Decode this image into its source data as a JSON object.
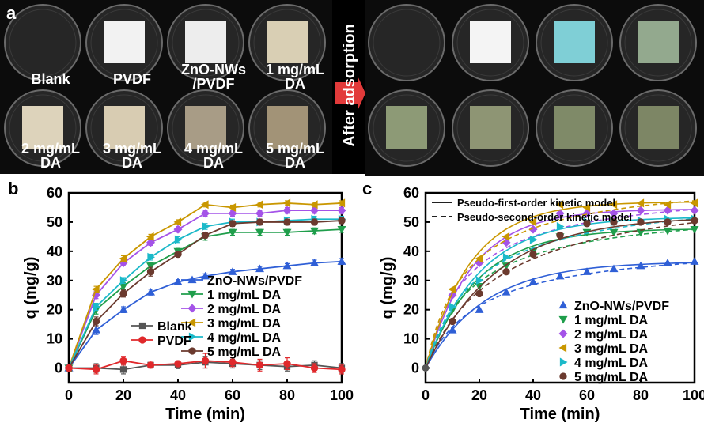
{
  "panel_a": {
    "letter": "a",
    "arrow_label": "After adsorption",
    "samples": [
      {
        "label": "Blank",
        "before": "#111111",
        "after": "#111111"
      },
      {
        "label": "PVDF",
        "before": "#f2f2f2",
        "after": "#f4f4f4"
      },
      {
        "label": "ZnO-NWs /PVDF",
        "before": "#ededed",
        "after": "#7fcfd6"
      },
      {
        "label": "1 mg/mL DA",
        "before": "#d9cfb4",
        "after": "#93a98e"
      },
      {
        "label": "2 mg/mL DA",
        "before": "#ddd3bb",
        "after": "#8d9a76"
      },
      {
        "label": "3 mg/mL DA",
        "before": "#d8ccb2",
        "after": "#8e9574"
      },
      {
        "label": "4 mg/mL DA",
        "before": "#a89c86",
        "after": "#7f8a68"
      },
      {
        "label": "5 mg/mL DA",
        "before": "#a29377",
        "after": "#7d8665"
      }
    ]
  },
  "chart_data": [
    {
      "panel": "b",
      "type": "line",
      "xlabel": "Time (min)",
      "ylabel": "q (mg/g)",
      "xlim": [
        0,
        100
      ],
      "ylim": [
        -5,
        60
      ],
      "xticks": [
        0,
        20,
        40,
        60,
        80,
        100
      ],
      "yticks": [
        0,
        10,
        20,
        30,
        40,
        50,
        60
      ],
      "x": [
        0,
        10,
        20,
        30,
        40,
        50,
        60,
        70,
        80,
        90,
        100
      ],
      "series": [
        {
          "name": "ZnO-NWs/PVDF",
          "color": "#2f5fd6",
          "marker": "triangle-up",
          "values": [
            0,
            13,
            20,
            26,
            29.5,
            31.5,
            33,
            34,
            35,
            36,
            36.5
          ],
          "err": [
            0,
            1.5,
            1,
            1,
            0.8,
            0.8,
            0.8,
            0.8,
            0.8,
            1,
            1
          ]
        },
        {
          "name": "1 mg/mL DA",
          "color": "#1f9e4b",
          "marker": "triangle-down",
          "values": [
            0,
            20,
            28,
            35,
            40,
            45,
            46.5,
            46.5,
            46.5,
            47,
            47.5
          ],
          "err": [
            0,
            1.5,
            1.2,
            1,
            1,
            1.2,
            1,
            1,
            1,
            1,
            1
          ]
        },
        {
          "name": "2 mg/mL DA",
          "color": "#a453e8",
          "marker": "diamond",
          "values": [
            0,
            25,
            36,
            43,
            47.5,
            53,
            53,
            53,
            54,
            54,
            54
          ],
          "err": [
            0,
            1.2,
            1,
            1,
            1,
            1,
            1,
            1,
            1,
            1,
            1
          ]
        },
        {
          "name": "3 mg/mL DA",
          "color": "#c99700",
          "marker": "triangle-left",
          "values": [
            0,
            27,
            37.5,
            45,
            50,
            56,
            55,
            56,
            56.5,
            56,
            56.5
          ],
          "err": [
            0,
            1,
            1,
            0.8,
            0.8,
            0.8,
            0.8,
            0.8,
            0.8,
            0.8,
            0.8
          ]
        },
        {
          "name": "4 mg/mL DA",
          "color": "#1bb9c9",
          "marker": "triangle-right",
          "values": [
            0,
            21,
            30,
            38,
            44,
            48.5,
            50,
            50,
            50.5,
            51,
            51
          ],
          "err": [
            0,
            1.2,
            1,
            1,
            1,
            1,
            1,
            1,
            1,
            1,
            1
          ]
        },
        {
          "name": "5 mg/mL DA",
          "color": "#6b3a2e",
          "marker": "circle",
          "values": [
            0,
            16,
            25.5,
            33,
            39,
            45.5,
            49.5,
            50,
            50,
            50,
            50.5
          ],
          "err": [
            0,
            1.5,
            1.2,
            1.5,
            1,
            1,
            1,
            1,
            1,
            1,
            1
          ]
        },
        {
          "name": "Blank",
          "color": "#555555",
          "marker": "square",
          "values": [
            0,
            0,
            -0.5,
            1,
            1,
            2,
            1.5,
            1,
            0.5,
            1,
            0
          ],
          "err": [
            0,
            1.5,
            1.5,
            1,
            1.2,
            2,
            1.5,
            1.5,
            1.5,
            1.5,
            1.5
          ]
        },
        {
          "name": "PVDF",
          "color": "#e0282b",
          "marker": "circle",
          "values": [
            0,
            -0.5,
            2.5,
            1,
            1.5,
            2.5,
            2,
            1,
            1.5,
            0,
            -0.5
          ],
          "err": [
            0,
            1.5,
            1.5,
            1,
            1,
            2.5,
            1.5,
            2,
            2,
            1.5,
            1.5
          ]
        }
      ],
      "legend_groups": [
        {
          "position": "right-middle",
          "items": [
            "ZnO-NWs/PVDF",
            "1 mg/mL DA",
            "2 mg/mL DA",
            "3 mg/mL DA",
            "4 mg/mL DA",
            "5 mg/mL DA"
          ]
        },
        {
          "position": "lower-center",
          "items": [
            "Blank",
            "PVDF"
          ]
        }
      ]
    },
    {
      "panel": "c",
      "type": "scatter",
      "xlabel": "Time (min)",
      "ylabel": "q (mg/g)",
      "xlim": [
        0,
        100
      ],
      "ylim": [
        -5,
        60
      ],
      "xticks": [
        0,
        20,
        40,
        60,
        80,
        100
      ],
      "yticks": [
        0,
        10,
        20,
        30,
        40,
        50,
        60
      ],
      "x": [
        0,
        10,
        20,
        30,
        40,
        50,
        60,
        70,
        80,
        90,
        100
      ],
      "line_legend": [
        "Pseudo-first-order kinetic model",
        "Pseudo-second-order kinetic model"
      ],
      "series": [
        {
          "name": "ZnO-NWs/PVDF",
          "color": "#2f5fd6",
          "marker": "triangle-up",
          "values": [
            0,
            13,
            20,
            26,
            29.5,
            31.5,
            33,
            34,
            35,
            36,
            36.5
          ],
          "pfo": {
            "qe": 36.5,
            "k1": 0.045
          },
          "pso": {
            "qe": 43.5,
            "k2": 0.0011
          }
        },
        {
          "name": "1 mg/mL DA",
          "color": "#1f9e4b",
          "marker": "triangle-down",
          "values": [
            0,
            20,
            28,
            35,
            40,
            45,
            46.5,
            46.5,
            46.5,
            47,
            47.5
          ],
          "pfo": {
            "qe": 47.8,
            "k1": 0.052
          },
          "pso": {
            "qe": 56,
            "k2": 0.001
          }
        },
        {
          "name": "2 mg/mL DA",
          "color": "#a453e8",
          "marker": "diamond",
          "values": [
            0,
            25,
            36,
            43,
            47.5,
            53,
            53,
            53,
            54,
            54,
            54
          ],
          "pfo": {
            "qe": 54.5,
            "k1": 0.058
          },
          "pso": {
            "qe": 63,
            "k2": 0.001
          }
        },
        {
          "name": "3 mg/mL DA",
          "color": "#c99700",
          "marker": "triangle-left",
          "values": [
            0,
            27,
            37.5,
            45,
            50,
            56,
            55,
            56,
            56.5,
            56,
            56.5
          ],
          "pfo": {
            "qe": 57,
            "k1": 0.06
          },
          "pso": {
            "qe": 66,
            "k2": 0.001
          }
        },
        {
          "name": "4 mg/mL DA",
          "color": "#1bb9c9",
          "marker": "triangle-right",
          "values": [
            0,
            21,
            30,
            38,
            44,
            48.5,
            50,
            50,
            50.5,
            51,
            51
          ],
          "pfo": {
            "qe": 51.8,
            "k1": 0.05
          },
          "pso": {
            "qe": 61,
            "k2": 0.00085
          }
        },
        {
          "name": "5 mg/mL DA",
          "color": "#6b3a2e",
          "marker": "circle",
          "values": [
            0,
            16,
            25.5,
            33,
            39,
            45.5,
            49.5,
            50,
            50,
            50,
            50.5
          ],
          "pfo": {
            "qe": 52,
            "k1": 0.038
          },
          "pso": {
            "qe": 64,
            "k2": 0.00055
          }
        }
      ]
    }
  ]
}
